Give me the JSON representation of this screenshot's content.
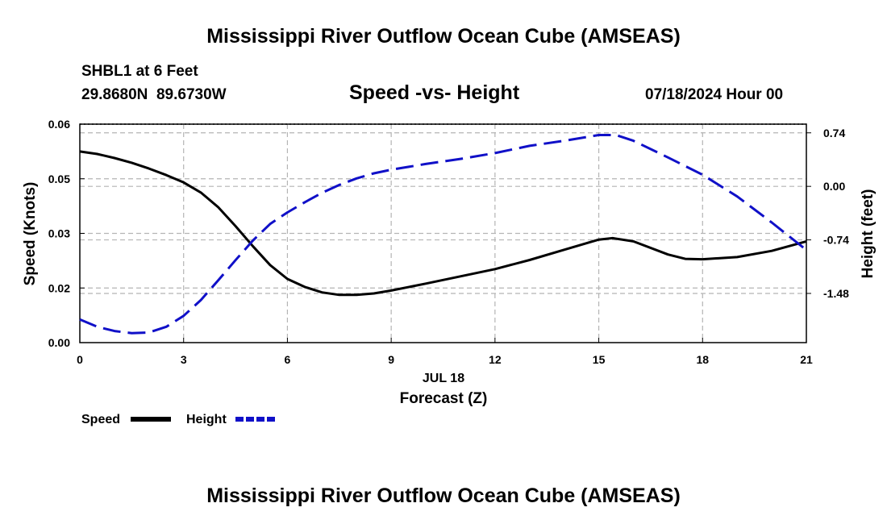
{
  "header": {
    "title": "Mississippi River Outflow Ocean Cube (AMSEAS)",
    "station": "SHBL1 at 6 Feet",
    "coords": "29.8680N  89.6730W",
    "datetime": "07/18/2024 Hour 00"
  },
  "footer": {
    "title": "Mississippi River Outflow Ocean Cube (AMSEAS)"
  },
  "chart_data": {
    "type": "line",
    "title": "Speed -vs- Height",
    "xlabel": "Forecast (Z)",
    "date_label": "JUL 18",
    "ylabel": "Speed (Knots)",
    "y2label": "Height (feet)",
    "xlim": [
      0,
      21
    ],
    "ylim": [
      0,
      0.06
    ],
    "y2lim": [
      -2.16,
      0.86
    ],
    "x_ticks": [
      "0",
      "3",
      "6",
      "9",
      "12",
      "15",
      "18",
      "21"
    ],
    "y_ticks": [
      "0.00",
      "0.02",
      "0.03",
      "0.05",
      "0.06"
    ],
    "y2_ticks": [
      "0.74",
      "0.00",
      "-0.74",
      "-1.48"
    ],
    "grid": true,
    "legend": [
      "Speed",
      "Height"
    ],
    "colors": {
      "Speed": "#000000",
      "Height": "#1010c8"
    },
    "series": [
      {
        "name": "Speed",
        "axis": "left",
        "x": [
          0,
          0.5,
          1,
          1.5,
          2,
          2.5,
          3,
          3.5,
          4,
          4.5,
          5,
          5.5,
          6,
          6.5,
          7,
          7.5,
          8,
          8.5,
          9,
          10,
          11,
          12,
          13,
          14,
          15,
          15.4,
          16,
          17,
          17.5,
          18,
          19,
          20,
          21
        ],
        "y": [
          0.0525,
          0.0518,
          0.0507,
          0.0494,
          0.0478,
          0.046,
          0.044,
          0.0412,
          0.0372,
          0.032,
          0.0265,
          0.0213,
          0.0175,
          0.0153,
          0.0138,
          0.0131,
          0.0131,
          0.0135,
          0.0143,
          0.0162,
          0.0182,
          0.0202,
          0.0227,
          0.0255,
          0.0283,
          0.0287,
          0.0278,
          0.0242,
          0.023,
          0.0229,
          0.0235,
          0.0252,
          0.0278
        ]
      },
      {
        "name": "Height",
        "axis": "right",
        "x": [
          0,
          0.5,
          1,
          1.5,
          2,
          2.5,
          3,
          3.5,
          4,
          4.5,
          5,
          5.5,
          6,
          6.5,
          7,
          7.5,
          8,
          8.5,
          9,
          10,
          11,
          12,
          13,
          14,
          15,
          15.5,
          16,
          17,
          18,
          19,
          20,
          21
        ],
        "y": [
          -1.84,
          -1.94,
          -2.0,
          -2.03,
          -2.02,
          -1.94,
          -1.79,
          -1.57,
          -1.3,
          -1.02,
          -0.75,
          -0.52,
          -0.36,
          -0.22,
          -0.09,
          0.02,
          0.11,
          0.18,
          0.23,
          0.31,
          0.38,
          0.46,
          0.56,
          0.63,
          0.71,
          0.71,
          0.63,
          0.4,
          0.16,
          -0.14,
          -0.5,
          -0.88
        ]
      }
    ]
  }
}
